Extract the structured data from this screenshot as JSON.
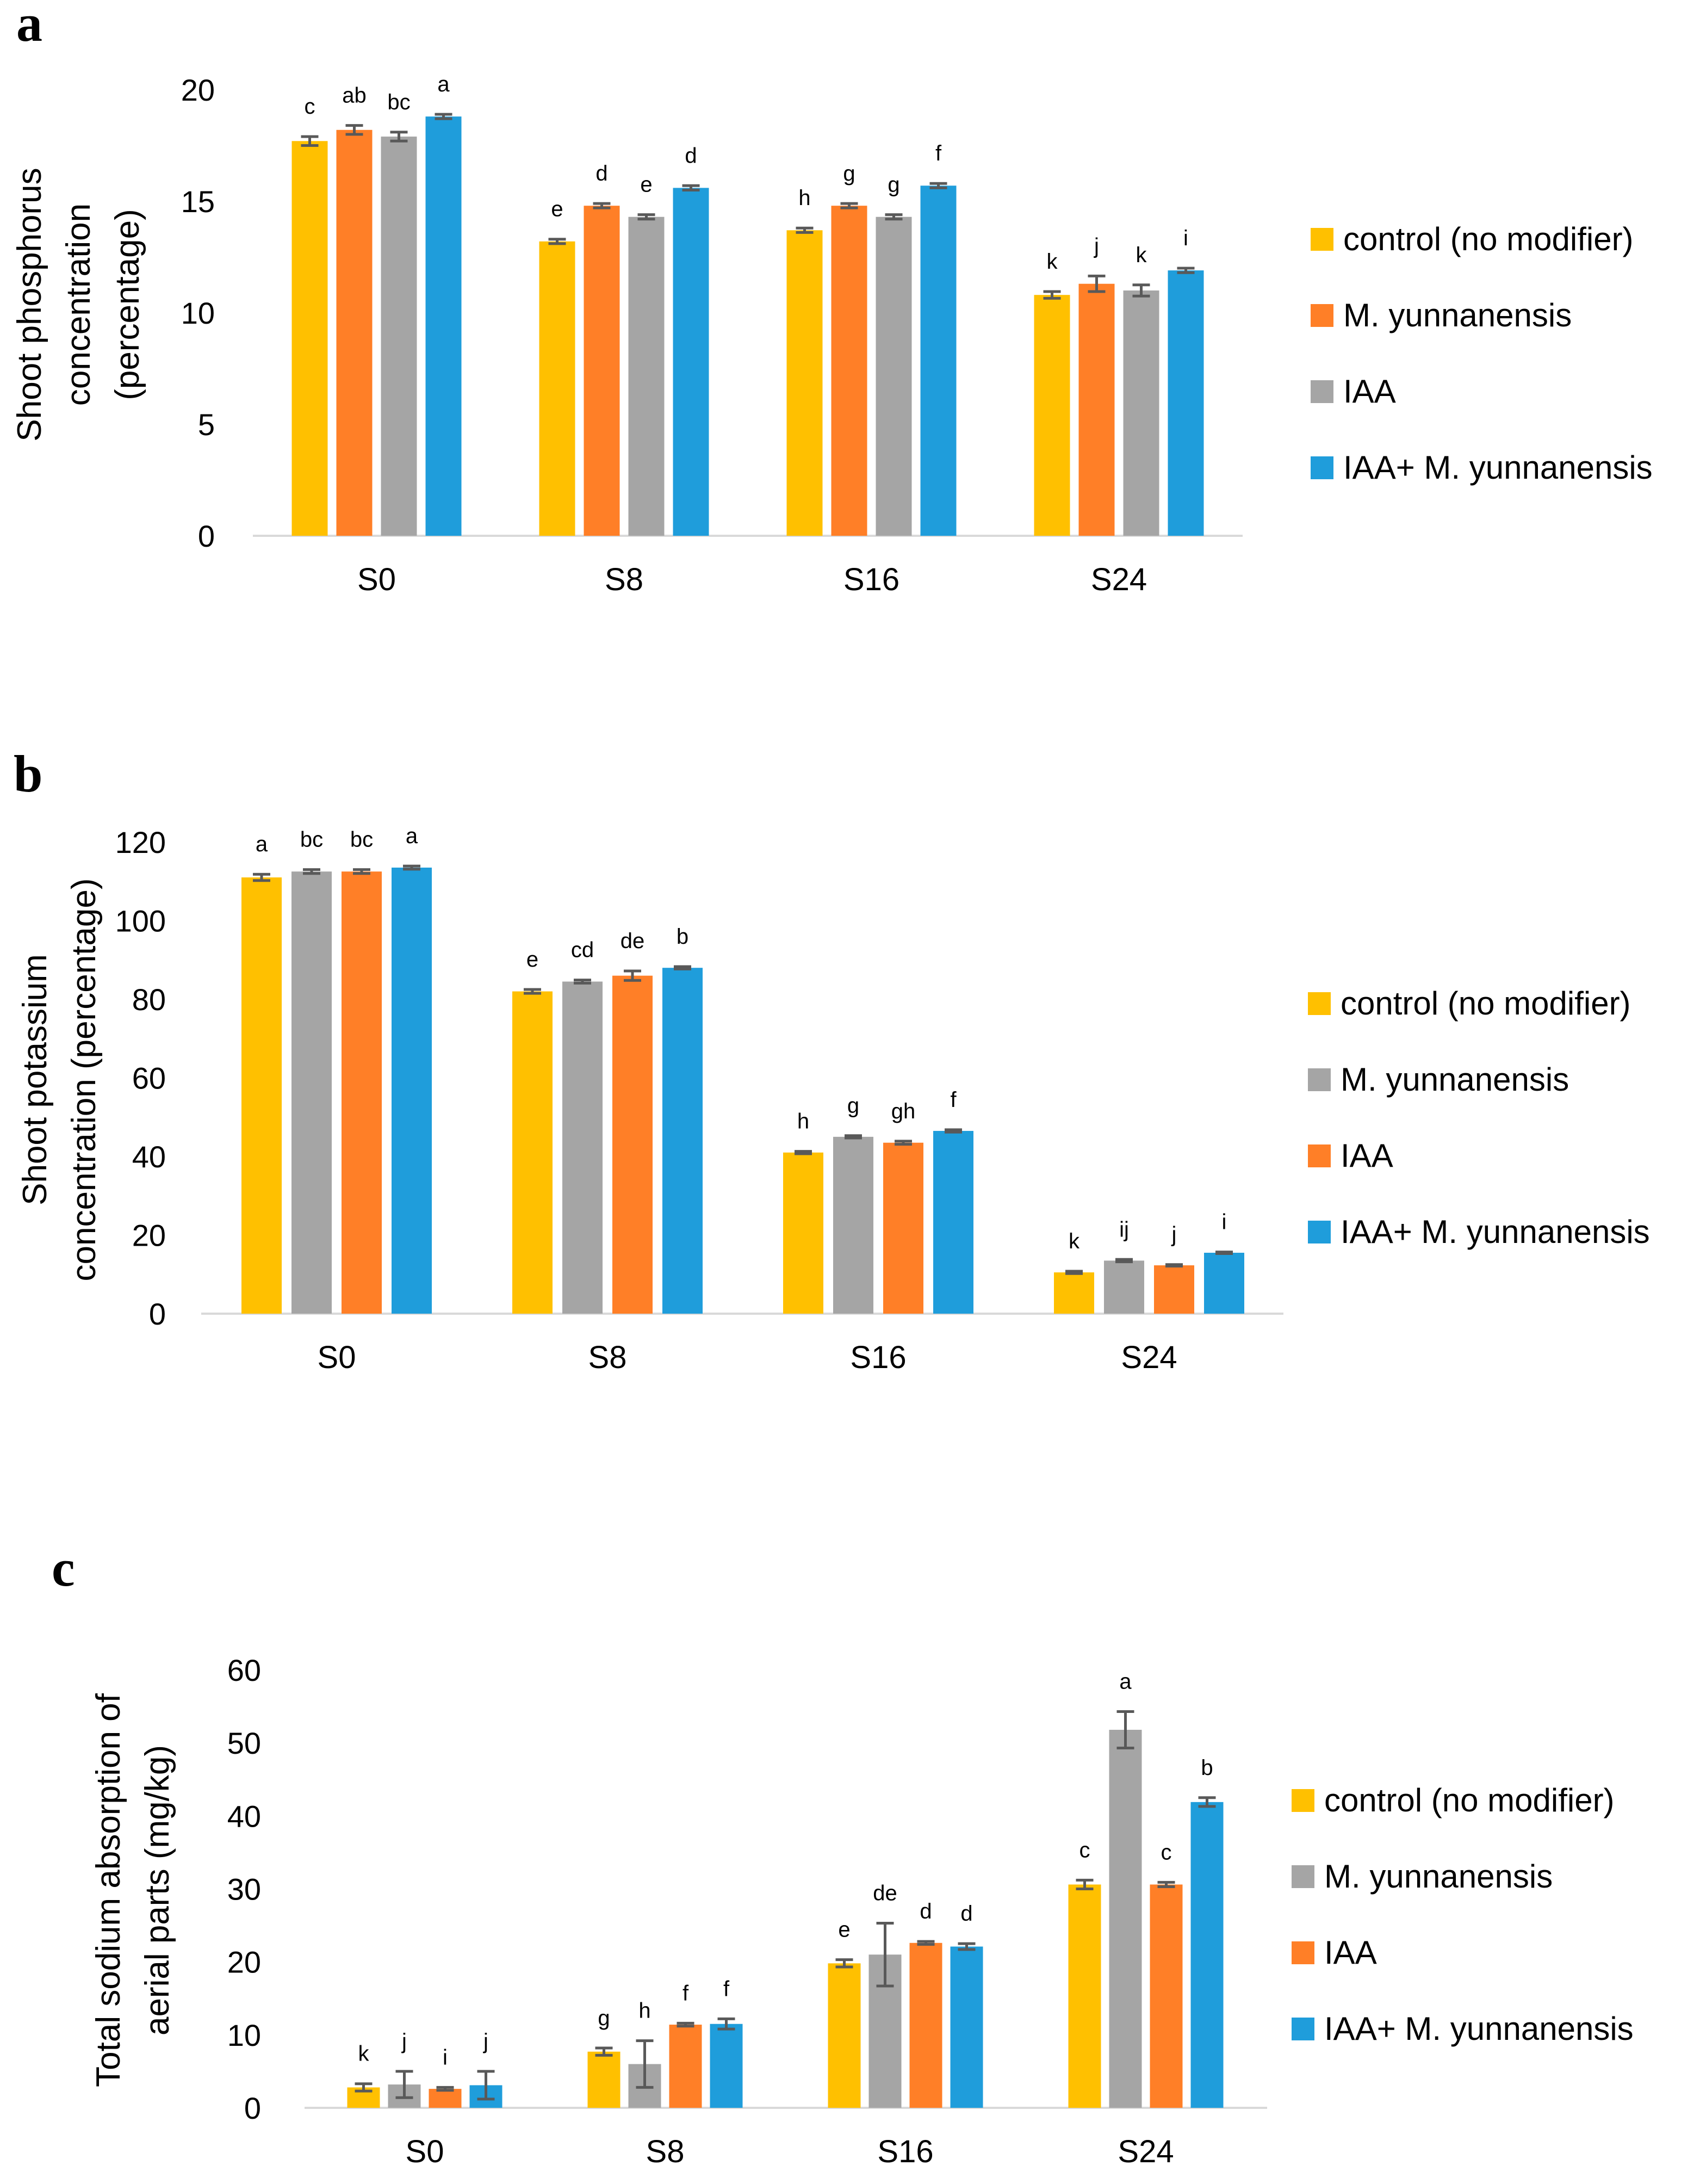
{
  "chart_data": [
    {
      "panel": "a",
      "type": "bar",
      "ylabel": [
        "Shoot phosphorus",
        "concentration",
        "(percentage)"
      ],
      "ylim": [
        0,
        20
      ],
      "yticks": [
        0,
        5,
        10,
        15,
        20
      ],
      "categories": [
        "S0",
        "S8",
        "S16",
        "S24"
      ],
      "series": [
        {
          "name": "control (no modifier)",
          "color": "#FFC000",
          "values": [
            17.7,
            13.2,
            13.7,
            10.8
          ],
          "errors": [
            0.2,
            0.1,
            0.1,
            0.15
          ],
          "letters": [
            "c",
            "e",
            "h",
            "k"
          ]
        },
        {
          "name": "M. yunnanensis",
          "color": "#FF7F27",
          "values": [
            18.2,
            14.8,
            14.8,
            11.3
          ],
          "errors": [
            0.2,
            0.1,
            0.1,
            0.35
          ],
          "letters": [
            "ab",
            "d",
            "g",
            "j"
          ]
        },
        {
          "name": "IAA",
          "color": "#A5A5A5",
          "values": [
            17.9,
            14.3,
            14.3,
            11.0
          ],
          "errors": [
            0.2,
            0.1,
            0.1,
            0.25
          ],
          "letters": [
            "bc",
            "e",
            "g",
            "k"
          ]
        },
        {
          "name": "IAA+ M. yunnanensis",
          "color": "#1F9DDB",
          "values": [
            18.8,
            15.6,
            15.7,
            11.9
          ],
          "errors": [
            0.1,
            0.1,
            0.1,
            0.1
          ],
          "letters": [
            "a",
            "d",
            "f",
            "i"
          ]
        }
      ]
    },
    {
      "panel": "b",
      "type": "bar",
      "ylabel": [
        "Shoot potassium",
        "concentration (percentage)"
      ],
      "ylim": [
        0,
        120
      ],
      "yticks": [
        0,
        20,
        40,
        60,
        80,
        100,
        120
      ],
      "categories": [
        "S0",
        "S8",
        "S16",
        "S24"
      ],
      "series": [
        {
          "name": "control (no modifier)",
          "color": "#FFC000",
          "values": [
            111,
            82,
            41,
            10.5
          ],
          "errors": [
            0.8,
            0.5,
            0.3,
            0.3
          ],
          "letters": [
            "a",
            "e",
            "h",
            "k"
          ]
        },
        {
          "name": "M. yunnanensis",
          "color": "#A5A5A5",
          "values": [
            112.5,
            84.5,
            45,
            13.5
          ],
          "errors": [
            0.5,
            0.4,
            0.3,
            0.3
          ],
          "letters": [
            "bc",
            "cd",
            "g",
            "ij"
          ]
        },
        {
          "name": "IAA",
          "color": "#FF7F27",
          "values": [
            112.5,
            86,
            43.5,
            12.3
          ],
          "errors": [
            0.5,
            1.2,
            0.4,
            0.2
          ],
          "letters": [
            "bc",
            "de",
            "gh",
            "j"
          ]
        },
        {
          "name": "IAA+ M. yunnanensis",
          "color": "#1F9DDB",
          "values": [
            113.5,
            88,
            46.5,
            15.5
          ],
          "errors": [
            0.4,
            0.3,
            0.3,
            0.2
          ],
          "letters": [
            "a",
            "b",
            "f",
            "i"
          ]
        }
      ]
    },
    {
      "panel": "c",
      "type": "bar",
      "ylabel": [
        "Total sodium absorption of",
        "aerial parts (mg/kg)"
      ],
      "ylim": [
        0,
        60
      ],
      "yticks": [
        0,
        10,
        20,
        30,
        40,
        50,
        60
      ],
      "categories": [
        "S0",
        "S8",
        "S16",
        "S24"
      ],
      "series": [
        {
          "name": "control (no modifier)",
          "color": "#FFC000",
          "values": [
            2.8,
            7.7,
            19.8,
            30.6
          ],
          "errors": [
            0.5,
            0.5,
            0.5,
            0.6
          ],
          "letters": [
            "k",
            "g",
            "e",
            "c"
          ]
        },
        {
          "name": "M. yunnanensis",
          "color": "#A5A5A5",
          "values": [
            3.2,
            6.0,
            21.0,
            51.8
          ],
          "errors": [
            1.8,
            3.2,
            4.3,
            2.5
          ],
          "letters": [
            "j",
            "h",
            "de",
            "a"
          ]
        },
        {
          "name": "IAA",
          "color": "#FF7F27",
          "values": [
            2.6,
            11.4,
            22.6,
            30.6
          ],
          "errors": [
            0.2,
            0.2,
            0.2,
            0.3
          ],
          "letters": [
            "i",
            "f",
            "d",
            "c"
          ]
        },
        {
          "name": "IAA+ M. yunnanensis",
          "color": "#1F9DDB",
          "values": [
            3.1,
            11.5,
            22.1,
            41.9
          ],
          "errors": [
            1.9,
            0.7,
            0.4,
            0.6
          ],
          "letters": [
            "j",
            "f",
            "d",
            "b"
          ]
        }
      ]
    }
  ]
}
